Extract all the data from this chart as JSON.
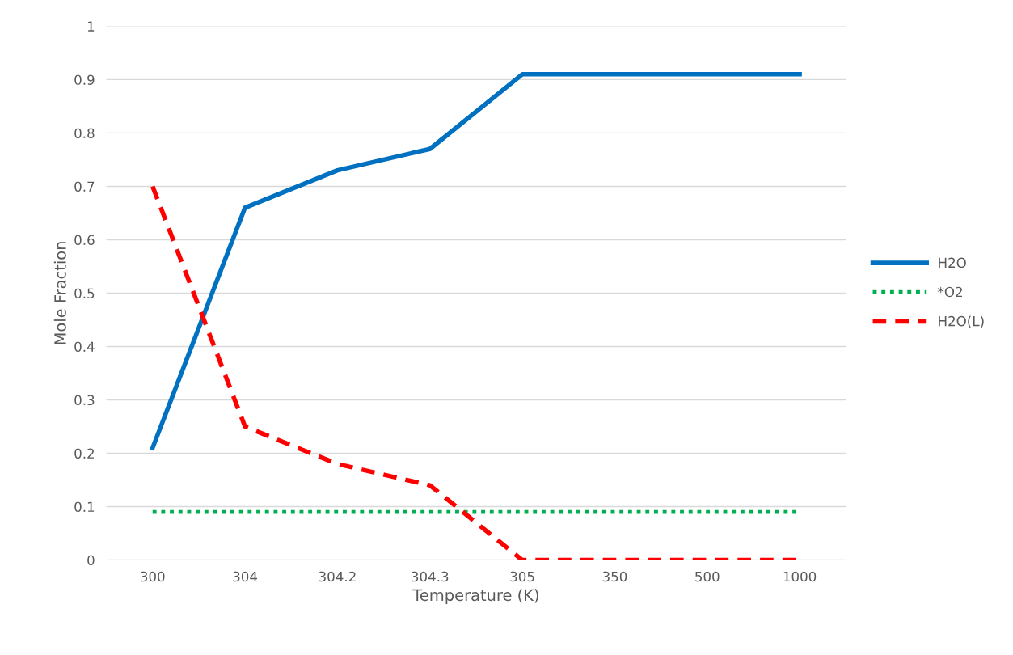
{
  "chart_data": {
    "type": "line",
    "xlabel": "Temperature (K)",
    "ylabel": "Mole Fraction",
    "categories": [
      "300",
      "304",
      "304.2",
      "304.3",
      "305",
      "350",
      "500",
      "1000"
    ],
    "series": [
      {
        "name": "H2O",
        "color": "#0070c0",
        "line_style": "solid",
        "values": [
          0.21,
          0.66,
          0.73,
          0.77,
          0.91,
          0.91,
          0.91,
          0.91
        ]
      },
      {
        "name": "*O2",
        "color": "#00b050",
        "line_style": "dotted",
        "values": [
          0.09,
          0.09,
          0.09,
          0.09,
          0.09,
          0.09,
          0.09,
          0.09
        ]
      },
      {
        "name": "H2O(L)",
        "color": "#ff0000",
        "line_style": "dashed",
        "values": [
          0.7,
          0.25,
          0.18,
          0.14,
          0,
          0,
          0,
          0
        ]
      }
    ],
    "ylim": [
      0,
      1
    ],
    "yticks": [
      0,
      0.1,
      0.2,
      0.3,
      0.4,
      0.5,
      0.6,
      0.7,
      0.8,
      0.9,
      1
    ],
    "grid": "y",
    "legend": "right",
    "marker": "none"
  }
}
